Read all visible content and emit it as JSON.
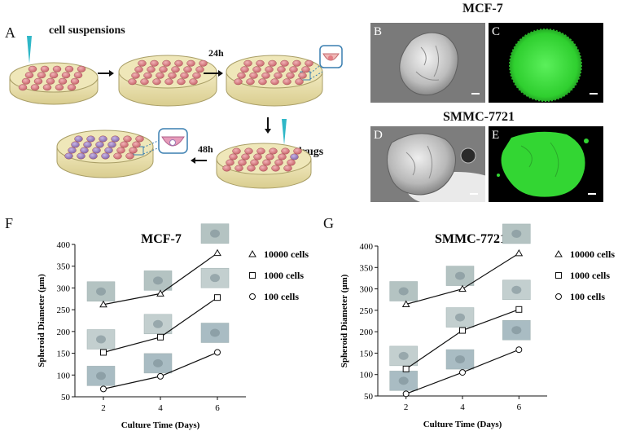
{
  "labels": {
    "panel_a": "A",
    "panel_b": "B",
    "panel_c": "C",
    "panel_d": "D",
    "panel_e": "E",
    "panel_f": "F",
    "panel_g": "G",
    "cell_suspensions": "cell suspensions",
    "step_24h": "24h",
    "drugs": "drugs",
    "step_48h": "48h",
    "mcf7_title": "MCF-7",
    "smmc_title": "SMMC-7721"
  },
  "colors": {
    "dish_fill": "#efe7b9",
    "dish_edge": "#a99e66",
    "spheroid": "#d47b80",
    "spheroid_drug": "#8d74b4",
    "pipette": "#2fb7c7",
    "inset_border": "#3a7fb1",
    "fluor_green": "#3ae33a"
  },
  "chart_data": [
    {
      "type": "line",
      "title": "MCF-7",
      "xlabel": "Culture Time (Days)",
      "ylabel": "Spheroid Diameter (μm)",
      "x": [
        2,
        4,
        6
      ],
      "xticks": [
        "2",
        "4",
        "6"
      ],
      "ylim": [
        50,
        400
      ],
      "yticks": [
        "50",
        "100",
        "150",
        "200",
        "250",
        "300",
        "350",
        "400"
      ],
      "legend_position": "top-right",
      "series": [
        {
          "name": "10000 cells",
          "marker": "triangle",
          "values": [
            262,
            287,
            380
          ]
        },
        {
          "name": "1000 cells",
          "marker": "square",
          "values": [
            152,
            187,
            278
          ]
        },
        {
          "name": "100 cells",
          "marker": "circle",
          "values": [
            68,
            97,
            152
          ]
        }
      ]
    },
    {
      "type": "line",
      "title": "SMMC-7721",
      "xlabel": "Culture Time (Days)",
      "ylabel": "Spheroid Diameter (μm)",
      "x": [
        2,
        4,
        6
      ],
      "xticks": [
        "2",
        "4",
        "6"
      ],
      "ylim": [
        50,
        400
      ],
      "yticks": [
        "50",
        "100",
        "150",
        "200",
        "250",
        "300",
        "350",
        "400"
      ],
      "legend_position": "top-right",
      "series": [
        {
          "name": "10000 cells",
          "marker": "triangle",
          "values": [
            264,
            300,
            383
          ]
        },
        {
          "name": "1000 cells",
          "marker": "square",
          "values": [
            113,
            203,
            252
          ]
        },
        {
          "name": "100 cells",
          "marker": "circle",
          "values": [
            55,
            105,
            158
          ]
        }
      ]
    }
  ]
}
